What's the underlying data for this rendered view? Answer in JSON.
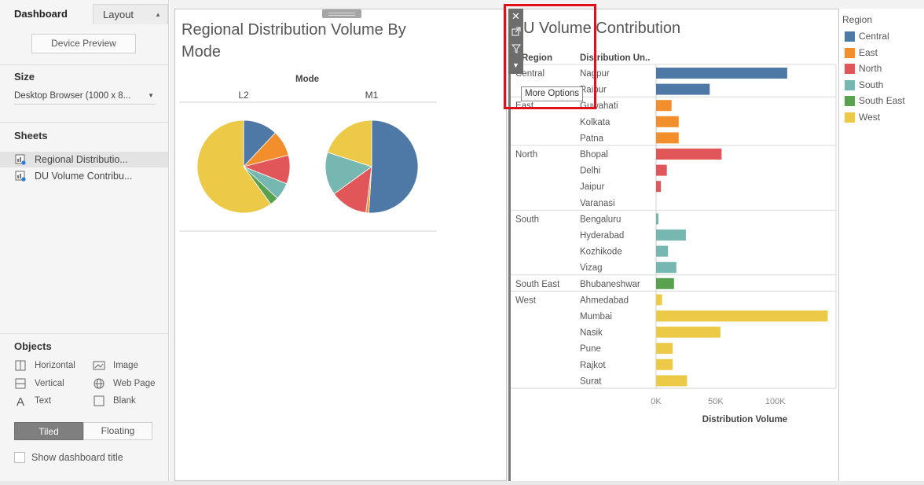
{
  "left_panel": {
    "tabs": {
      "dashboard": "Dashboard",
      "layout": "Layout"
    },
    "device_preview_label": "Device Preview",
    "size": {
      "title": "Size",
      "value": "Desktop Browser (1000 x 8..."
    },
    "sheets": {
      "title": "Sheets",
      "items": [
        "Regional Distributio...",
        "DU Volume Contribu..."
      ]
    },
    "objects": {
      "title": "Objects",
      "items": [
        "Horizontal",
        "Image",
        "Vertical",
        "Web Page",
        "Text",
        "Blank"
      ]
    },
    "layout_mode": {
      "tiled": "Tiled",
      "floating": "Floating"
    },
    "show_title_label": "Show dashboard title"
  },
  "pie_sheet": {
    "title_line1": "Regional Distribution Volume By",
    "title_line2": "Mode",
    "mode_header": "Mode",
    "columns": [
      "L2",
      "M1"
    ]
  },
  "bar_sheet": {
    "title": "U Volume Contribution",
    "col_region": "Region",
    "col_du": "Distribution Un..",
    "xlabel": "Distribution Volume"
  },
  "legend": {
    "title": "Region",
    "items": [
      {
        "name": "Central",
        "color": "#4e79a7"
      },
      {
        "name": "East",
        "color": "#f28e2b"
      },
      {
        "name": "North",
        "color": "#e15759"
      },
      {
        "name": "South",
        "color": "#76b7b2"
      },
      {
        "name": "South East",
        "color": "#59a14f"
      },
      {
        "name": "West",
        "color": "#edc948"
      }
    ]
  },
  "toolbar": {
    "tooltip": "More Options"
  },
  "chart_data": [
    {
      "type": "pie",
      "categories": [
        "Central",
        "East",
        "North",
        "South",
        "South East",
        "West"
      ],
      "series": [
        {
          "name": "L2",
          "values": [
            12,
            9,
            10,
            6,
            3,
            60
          ]
        },
        {
          "name": "M1",
          "values": [
            51,
            1,
            13,
            15,
            0,
            20
          ]
        }
      ]
    },
    {
      "type": "bar",
      "xlabel": "Distribution Volume",
      "xlim": [
        0,
        145000
      ],
      "xticks": [
        0,
        50000,
        100000
      ],
      "xtick_labels": [
        "0K",
        "50K",
        "100K"
      ],
      "groups": [
        {
          "region": "Central",
          "rows": [
            {
              "label": "Nagpur",
              "value": 110000
            },
            {
              "label": "Raipur",
              "value": 45000
            }
          ]
        },
        {
          "region": "East",
          "rows": [
            {
              "label": "Guwahati",
              "value": 13000
            },
            {
              "label": "Kolkata",
              "value": 19000
            },
            {
              "label": "Patna",
              "value": 19000
            }
          ]
        },
        {
          "region": "North",
          "rows": [
            {
              "label": "Bhopal",
              "value": 55000
            },
            {
              "label": "Delhi",
              "value": 9000
            },
            {
              "label": "Jaipur",
              "value": 4000
            },
            {
              "label": "Varanasi",
              "value": 0
            }
          ]
        },
        {
          "region": "South",
          "rows": [
            {
              "label": "Bengaluru",
              "value": 2000
            },
            {
              "label": "Hyderabad",
              "value": 25000
            },
            {
              "label": "Kozhikode",
              "value": 10000
            },
            {
              "label": "Vizag",
              "value": 17000
            }
          ]
        },
        {
          "region": "South East",
          "rows": [
            {
              "label": "Bhubaneshwar",
              "value": 15000
            }
          ]
        },
        {
          "region": "West",
          "rows": [
            {
              "label": "Ahmedabad",
              "value": 5000
            },
            {
              "label": "Mumbai",
              "value": 144000
            },
            {
              "label": "Nasik",
              "value": 54000
            },
            {
              "label": "Pune",
              "value": 14000
            },
            {
              "label": "Rajkot",
              "value": 14000
            },
            {
              "label": "Surat",
              "value": 26000
            }
          ]
        }
      ]
    }
  ]
}
